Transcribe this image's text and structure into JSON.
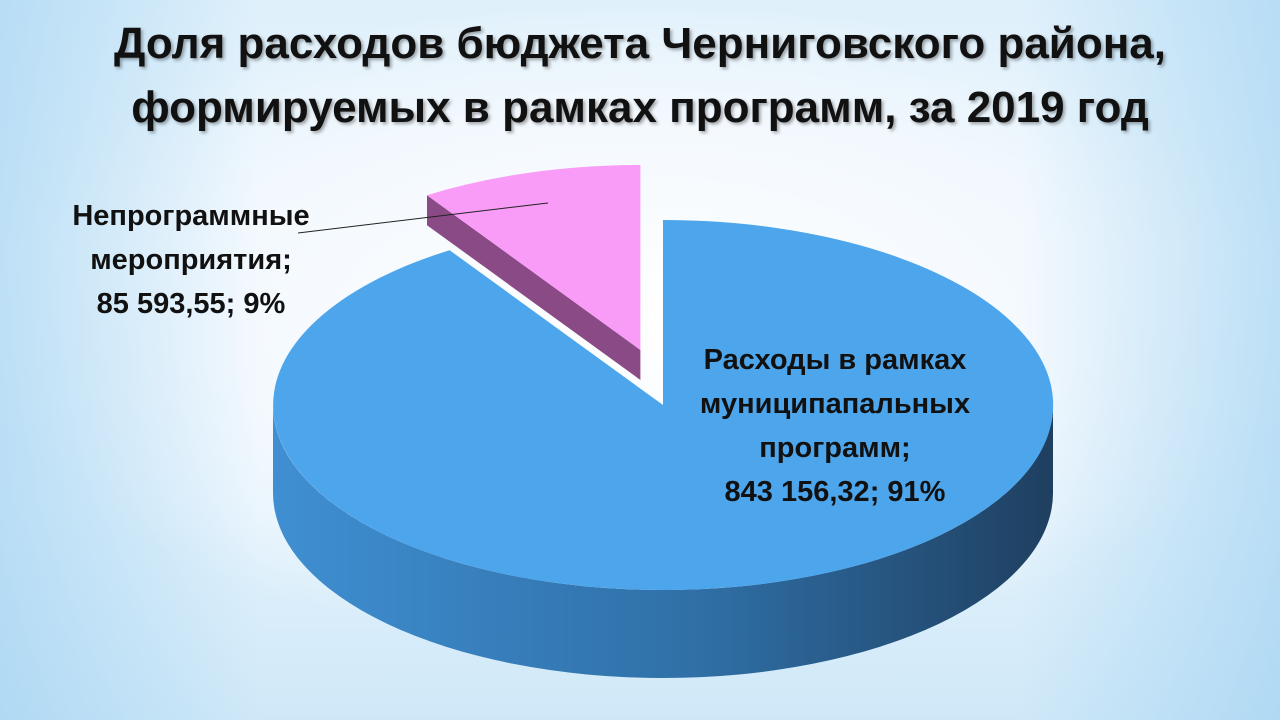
{
  "title_line1": "Доля расходов бюджета Черниговского района,",
  "title_line2": "формируемых в рамках программ, за 2019 год",
  "chart_data": {
    "type": "pie",
    "title": "Доля расходов бюджета Черниговского района, формируемых в рамках программ, за 2019 год",
    "three_d": true,
    "slices": [
      {
        "label_lines": [
          "Расходы в рамках",
          "муниципапальных",
          "программ;"
        ],
        "value_text": "843 156,32; 91%",
        "value": 843156.32,
        "percent": 91,
        "color": "#4da6ec",
        "side_color": "#2f6fa6"
      },
      {
        "label_lines": [
          "Непрограммные",
          "мероприятия;"
        ],
        "value_text": "85 593,55; 9%",
        "value": 85593.55,
        "percent": 9,
        "color": "#f99cf7",
        "side_color": "#8a4a86",
        "exploded": true
      }
    ]
  }
}
